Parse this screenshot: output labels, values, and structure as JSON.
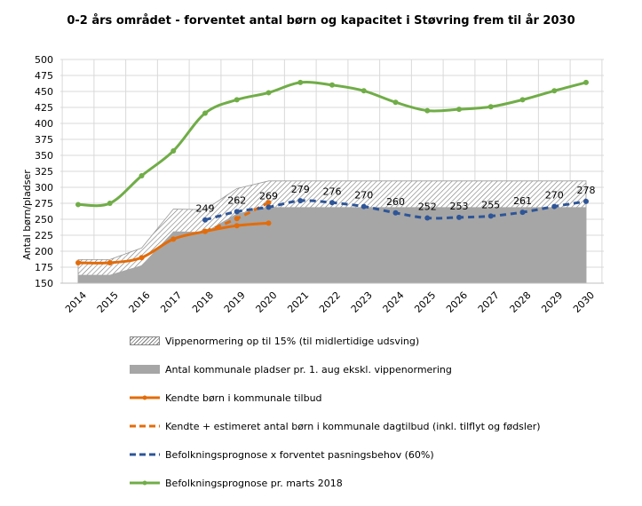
{
  "chart_data": {
    "type": "line",
    "title": "0-2 års området - forventet antal børn og kapacitet i Støvring frem til år 2030",
    "ylabel": "Antal børn/pladser",
    "xlabel": "",
    "ylim": [
      150,
      500
    ],
    "yticks": [
      150,
      175,
      200,
      225,
      250,
      275,
      300,
      325,
      350,
      375,
      400,
      425,
      450,
      475,
      500
    ],
    "grid": true,
    "legend_position": "bottom",
    "categories": [
      "2014",
      "2015",
      "2016",
      "2017",
      "2018",
      "2019",
      "2020",
      "2021",
      "2022",
      "2023",
      "2024",
      "2025",
      "2026",
      "2027",
      "2028",
      "2029",
      "2030"
    ],
    "series": [
      {
        "name": "Vippenormering op til 15% (til midlertidige udsving)",
        "kind": "hatch-area",
        "color": "#777777",
        "values": [
          187,
          187,
          205,
          266,
          265,
          298,
          310,
          310,
          310,
          310,
          310,
          310,
          310,
          310,
          310,
          310,
          310
        ]
      },
      {
        "name": "Antal kommunale pladser pr. 1. aug ekskl. vippenormering",
        "kind": "area",
        "color": "#a6a6a6",
        "values": [
          163,
          163,
          178,
          231,
          230,
          259,
          269,
          269,
          269,
          269,
          269,
          269,
          269,
          269,
          269,
          269,
          269
        ]
      },
      {
        "name": "Kendte børn i kommunale tilbud",
        "kind": "line",
        "color": "#e36c0a",
        "dashed": false,
        "values": [
          182,
          182,
          190,
          219,
          231,
          240,
          244,
          null,
          null,
          null,
          null,
          null,
          null,
          null,
          null,
          null,
          null
        ]
      },
      {
        "name": "Kendte + estimeret antal børn i kommunale dagtilbud (inkl. tilflyt og fødsler)",
        "kind": "line",
        "color": "#e36c0a",
        "dashed": true,
        "values": [
          null,
          null,
          null,
          null,
          231,
          251,
          276,
          null,
          null,
          null,
          null,
          null,
          null,
          null,
          null,
          null,
          null
        ]
      },
      {
        "name": "Befolkningsprognose x forventet pasningsbehov (60%)",
        "kind": "line",
        "color": "#2e5597",
        "dashed": true,
        "labels": true,
        "values": [
          null,
          null,
          null,
          null,
          249,
          262,
          269,
          279,
          276,
          270,
          260,
          252,
          253,
          255,
          261,
          270,
          278
        ]
      },
      {
        "name": "Befolkningsprognose pr. marts 2018",
        "kind": "line",
        "color": "#70ad47",
        "dashed": false,
        "values": [
          273,
          275,
          318,
          357,
          416,
          437,
          448,
          464,
          460,
          451,
          433,
          420,
          422,
          426,
          437,
          451,
          464
        ]
      }
    ]
  }
}
